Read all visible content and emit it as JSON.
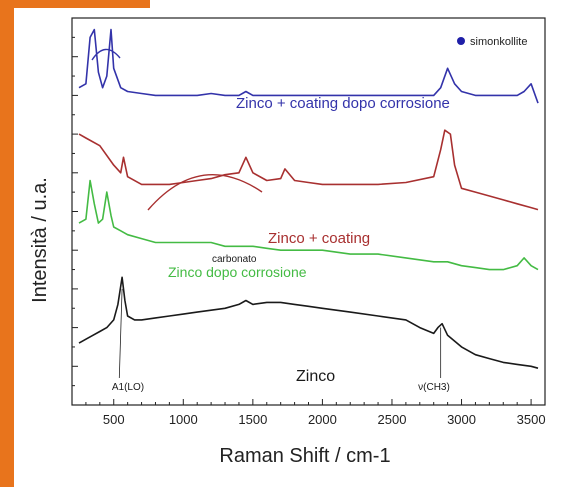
{
  "colors": {
    "accent": "#e8741c",
    "simonkollite_marker": "#1f1fa8",
    "series_blue": "#3333aa",
    "series_red": "#a83030",
    "series_green": "#44bb44",
    "series_black": "#1a1a1a",
    "axis": "#222222"
  },
  "chart_data": {
    "type": "line",
    "xlabel": "Raman Shift / cm-1",
    "ylabel": "Intensità / u.a.",
    "xlim": [
      200,
      3600
    ],
    "ylim": [
      0,
      100
    ],
    "xticks": [
      500,
      1000,
      1500,
      2000,
      2500,
      3000,
      3500
    ],
    "yticks_shown": false,
    "legend": [
      {
        "label": "simonkollite",
        "marker": "filled-circle",
        "position": "top-right"
      }
    ],
    "annotations": [
      {
        "text": "Zinco + coating dopo corrosione",
        "series": "blue"
      },
      {
        "text": "Zinco + coating",
        "series": "red"
      },
      {
        "text": "Zinco dopo corrosione",
        "series": "green"
      },
      {
        "text": "carbonato",
        "series": "green"
      },
      {
        "text": "Zinco",
        "series": "black"
      },
      {
        "text": "A1(LO)",
        "x": 560
      },
      {
        "text": "ν(CH3)",
        "x": 2850
      }
    ],
    "series": [
      {
        "color": "blue",
        "x": [
          250,
          300,
          330,
          360,
          390,
          420,
          450,
          480,
          500,
          550,
          600,
          700,
          800,
          900,
          1000,
          1100,
          1200,
          1300,
          1400,
          1450,
          1500,
          1600,
          1700,
          1800,
          1900,
          2000,
          2200,
          2400,
          2600,
          2800,
          2850,
          2900,
          2950,
          3000,
          3100,
          3200,
          3300,
          3400,
          3450,
          3500,
          3550
        ],
        "y": [
          82,
          83,
          95,
          97,
          86,
          82,
          85,
          97,
          87,
          82,
          81,
          80.5,
          80,
          80,
          80,
          80,
          80.5,
          80,
          80,
          81,
          80,
          80,
          80,
          80,
          80,
          80,
          80,
          80,
          80,
          80,
          82,
          87,
          83,
          81,
          80,
          80,
          80,
          80,
          81,
          83,
          78
        ]
      },
      {
        "color": "red",
        "x": [
          250,
          300,
          400,
          500,
          550,
          570,
          600,
          700,
          800,
          900,
          1000,
          1100,
          1200,
          1300,
          1400,
          1450,
          1500,
          1600,
          1700,
          1730,
          1800,
          1900,
          2000,
          2200,
          2400,
          2600,
          2800,
          2850,
          2880,
          2920,
          2950,
          3000,
          3100,
          3200,
          3300,
          3400,
          3500,
          3550
        ],
        "y": [
          70,
          69,
          67,
          62,
          60,
          64,
          59,
          57,
          57,
          57,
          57.5,
          58,
          58.5,
          59.5,
          60,
          64,
          60,
          58,
          58.5,
          61,
          58,
          57.5,
          57,
          57,
          57,
          57.5,
          59,
          66,
          71,
          70,
          62,
          56,
          55,
          54,
          53,
          52,
          51,
          50.5
        ]
      },
      {
        "color": "green",
        "x": [
          250,
          300,
          330,
          360,
          390,
          420,
          450,
          480,
          500,
          550,
          600,
          700,
          800,
          900,
          1000,
          1100,
          1200,
          1300,
          1400,
          1450,
          1500,
          1600,
          1700,
          1800,
          1900,
          2000,
          2200,
          2400,
          2600,
          2800,
          2900,
          3000,
          3100,
          3200,
          3300,
          3400,
          3450,
          3500,
          3550
        ],
        "y": [
          47,
          48,
          58,
          52,
          47,
          48,
          55,
          49,
          46,
          45,
          44,
          43,
          42,
          42,
          42,
          42,
          42,
          41,
          41,
          41,
          41,
          40.5,
          40,
          40,
          40,
          40,
          39,
          39,
          38,
          37,
          37,
          36,
          35.5,
          35,
          35,
          36,
          38,
          36,
          35
        ]
      },
      {
        "color": "black",
        "x": [
          250,
          300,
          350,
          400,
          450,
          500,
          530,
          560,
          580,
          600,
          650,
          700,
          800,
          900,
          1000,
          1100,
          1200,
          1300,
          1400,
          1450,
          1500,
          1600,
          1700,
          1800,
          1900,
          2000,
          2200,
          2400,
          2600,
          2700,
          2800,
          2830,
          2860,
          2900,
          3000,
          3100,
          3200,
          3300,
          3400,
          3500,
          3550
        ],
        "y": [
          16,
          17,
          18,
          19,
          20,
          22,
          26,
          33,
          27,
          23,
          22,
          22,
          22.5,
          23,
          23.5,
          24,
          24.5,
          25,
          26,
          27,
          26,
          26.5,
          26.5,
          26,
          25.5,
          25,
          24,
          23,
          22,
          20,
          18.5,
          20,
          21,
          18,
          15,
          13,
          12,
          11,
          10.5,
          10,
          9.5
        ]
      }
    ]
  }
}
